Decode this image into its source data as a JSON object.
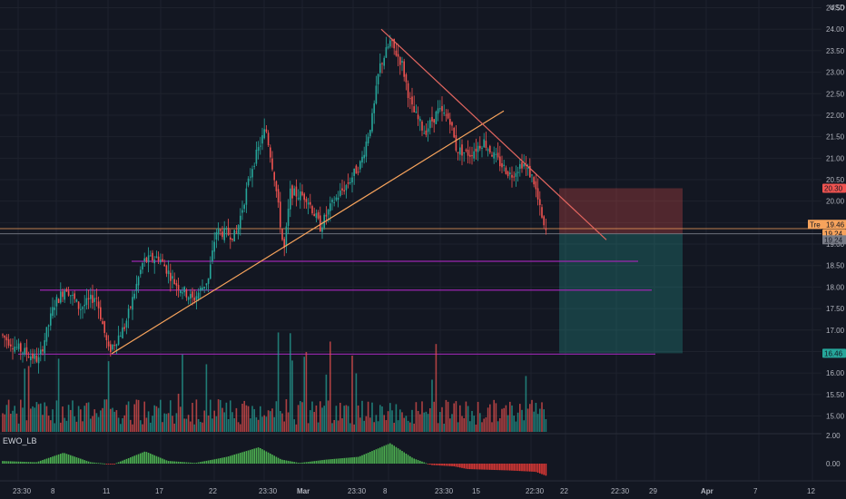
{
  "currency_label": "USD",
  "indicator_label": "EWO_LB",
  "colors": {
    "background": "#131722",
    "up": "#26a69a",
    "down": "#ef5350",
    "trendline": "#f7a35c",
    "resistance_line": "#ff5a5a",
    "support_line": "#9c27b0",
    "grid": "#1e222d"
  },
  "badges": {
    "upper": "20.30",
    "current_tag": "Tre",
    "current_value": "19.46",
    "mid": "19.24",
    "lower_gray": "19.24",
    "target": "16.46"
  },
  "chart_data": {
    "type": "candlestick",
    "ylim": [
      14.8,
      24.3
    ],
    "y_ticks": [
      "24.50",
      "24.00",
      "23.50",
      "23.00",
      "22.50",
      "22.00",
      "21.50",
      "21.00",
      "20.50",
      "20.00",
      "19.50",
      "19.00",
      "18.50",
      "18.00",
      "17.50",
      "17.00",
      "16.50",
      "16.00",
      "15.50",
      "15.00"
    ],
    "x_ticks": [
      "23:30",
      "8",
      "11",
      "17",
      "22",
      "23:30",
      "Mar",
      "23:30",
      "8",
      "23:30",
      "15",
      "22:30",
      "22",
      "22:30",
      "29",
      "Apr",
      "7",
      "12"
    ],
    "indicator_ticks": [
      "2.00",
      "0.00"
    ],
    "key_points": [
      {
        "t": "start",
        "price": 16.9
      },
      {
        "t": "11",
        "price": 16.3
      },
      {
        "t": "17",
        "price": 18.8
      },
      {
        "t": "22",
        "price": 19.2
      },
      {
        "t": "23:30",
        "price": 21.8
      },
      {
        "t": "Mar",
        "price": 20.1
      },
      {
        "t": "23:30",
        "price": 20.8
      },
      {
        "t": "8",
        "price": 23.8
      },
      {
        "t": "23:30",
        "price": 22.1
      },
      {
        "t": "15",
        "price": 21.2
      },
      {
        "t": "22:30",
        "price": 19.2
      }
    ],
    "levels": [
      18.6,
      17.9,
      16.45
    ],
    "trade_box": {
      "entry": 19.24,
      "stop": 20.3,
      "target": 16.46
    }
  }
}
